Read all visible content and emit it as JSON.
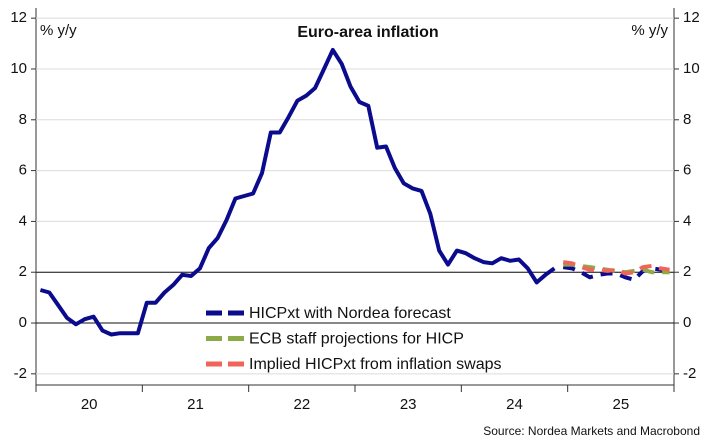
{
  "chart_data": {
    "type": "line",
    "title": "Euro-area inflation",
    "y_label": "% y/y",
    "y2_label": "% y/y",
    "source": "Source: Nordea Markets and Macrobond",
    "categories": [
      null,
      null,
      null,
      null,
      null,
      null,
      "20",
      null,
      null,
      null,
      null,
      null,
      null,
      null,
      null,
      null,
      null,
      null,
      "21",
      null,
      null,
      null,
      null,
      null,
      null,
      null,
      null,
      null,
      null,
      null,
      "22",
      null,
      null,
      null,
      null,
      null,
      null,
      null,
      null,
      null,
      null,
      null,
      "23",
      null,
      null,
      null,
      null,
      null,
      null,
      null,
      null,
      null,
      null,
      null,
      "24",
      null,
      null,
      null,
      null,
      null,
      null,
      null,
      null,
      null,
      null,
      null,
      "25",
      null,
      null,
      null,
      null,
      null
    ],
    "series": [
      {
        "name": "HICPxt with Nordea forecast",
        "color": "#0b0b8e",
        "values": [
          1.3,
          1.2,
          0.7,
          0.2,
          -0.05,
          0.15,
          0.25,
          -0.3,
          -0.45,
          -0.4,
          -0.4,
          -0.4,
          0.8,
          0.8,
          1.2,
          1.5,
          1.9,
          1.85,
          2.15,
          2.95,
          3.35,
          4.05,
          4.9,
          5.0,
          5.1,
          5.9,
          7.5,
          7.5,
          8.1,
          8.75,
          8.95,
          9.25,
          10.0,
          10.75,
          10.2,
          9.3,
          8.7,
          8.55,
          6.9,
          6.95,
          6.1,
          5.5,
          5.3,
          5.2,
          4.3,
          2.85,
          2.3,
          2.85,
          2.75,
          2.55,
          2.4,
          2.35,
          2.55,
          2.45,
          2.5,
          2.15,
          1.6,
          1.9,
          2.15,
          null,
          null,
          null,
          null,
          null,
          null,
          null,
          null,
          null,
          null,
          null,
          null,
          null
        ],
        "forecast": [
          null,
          null,
          null,
          null,
          null,
          null,
          null,
          null,
          null,
          null,
          null,
          null,
          null,
          null,
          null,
          null,
          null,
          null,
          null,
          null,
          null,
          null,
          null,
          null,
          null,
          null,
          null,
          null,
          null,
          null,
          null,
          null,
          null,
          null,
          null,
          null,
          null,
          null,
          null,
          null,
          null,
          null,
          null,
          null,
          null,
          null,
          null,
          null,
          null,
          null,
          null,
          null,
          null,
          null,
          null,
          null,
          null,
          null,
          null,
          2.2,
          2.15,
          2.0,
          1.8,
          1.9,
          1.95,
          1.95,
          1.8,
          1.7,
          2.05,
          2.15,
          2.1,
          2.1
        ]
      },
      {
        "name": "ECB staff projections for HICP",
        "color": "#8cab48",
        "values": [
          null,
          null,
          null,
          null,
          null,
          null,
          null,
          null,
          null,
          null,
          null,
          null,
          null,
          null,
          null,
          null,
          null,
          null,
          null,
          null,
          null,
          null,
          null,
          null,
          null,
          null,
          null,
          null,
          null,
          null,
          null,
          null,
          null,
          null,
          null,
          null,
          null,
          null,
          null,
          null,
          null,
          null,
          null,
          null,
          null,
          null,
          null,
          null,
          null,
          null,
          null,
          null,
          null,
          null,
          null,
          null,
          null,
          null,
          null,
          2.3,
          2.3,
          2.25,
          2.2,
          2.15,
          2.1,
          2.05,
          2.0,
          2.05,
          2.1,
          2.0,
          2.0,
          2.0
        ]
      },
      {
        "name": "Implied HICPxt from inflation swaps",
        "color": "#f0645a",
        "values": [
          null,
          null,
          null,
          null,
          null,
          null,
          null,
          null,
          null,
          null,
          null,
          null,
          null,
          null,
          null,
          null,
          null,
          null,
          null,
          null,
          null,
          null,
          null,
          null,
          null,
          null,
          null,
          null,
          null,
          null,
          null,
          null,
          null,
          null,
          null,
          null,
          null,
          null,
          null,
          null,
          null,
          null,
          null,
          null,
          null,
          null,
          null,
          null,
          null,
          null,
          null,
          null,
          null,
          null,
          null,
          null,
          null,
          null,
          null,
          2.4,
          2.35,
          2.2,
          2.1,
          2.1,
          2.05,
          2.1,
          1.95,
          2.0,
          2.2,
          2.25,
          2.15,
          2.1
        ]
      }
    ],
    "ylim": [
      -2.4,
      12.4
    ],
    "yticks": [
      -2,
      0,
      2,
      4,
      6,
      8,
      10,
      12
    ],
    "y2lim": [
      -2.4,
      12.4
    ],
    "y2ticks": [
      -2,
      0,
      2,
      4,
      6,
      8,
      10,
      12
    ],
    "hlines": [
      0,
      2
    ],
    "grid": true
  }
}
